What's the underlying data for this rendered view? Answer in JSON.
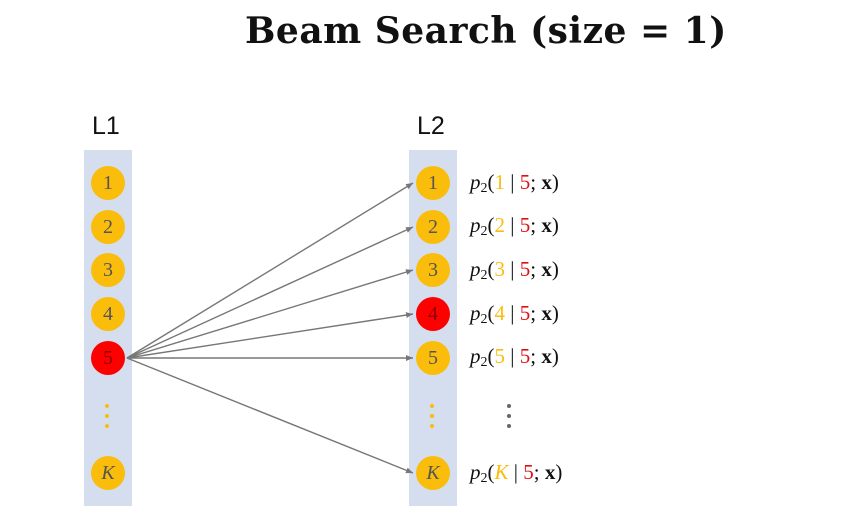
{
  "title": "Beam Search (size = 1)",
  "l1_label": "L1",
  "l2_label": "L2",
  "l1_nodes": [
    "1",
    "2",
    "3",
    "4",
    "5",
    "K"
  ],
  "l2_nodes": [
    "1",
    "2",
    "3",
    "4",
    "5",
    "K"
  ],
  "l1_selected": "5",
  "l2_selected": "4",
  "probabilities": [
    {
      "fn": "p",
      "sub": "2",
      "cand": "1",
      "cond": "5",
      "x": "x"
    },
    {
      "fn": "p",
      "sub": "2",
      "cand": "2",
      "cond": "5",
      "x": "x"
    },
    {
      "fn": "p",
      "sub": "2",
      "cand": "3",
      "cond": "5",
      "x": "x"
    },
    {
      "fn": "p",
      "sub": "2",
      "cand": "4",
      "cond": "5",
      "x": "x"
    },
    {
      "fn": "p",
      "sub": "2",
      "cand": "5",
      "cond": "5",
      "x": "x"
    },
    {
      "fn": "p",
      "sub": "2",
      "cand": "K",
      "cond": "5",
      "x": "x"
    }
  ],
  "colors": {
    "node": "#fbbd0b",
    "selected": "#ff0000",
    "column_bg": "#d4deef",
    "arrow": "#777777",
    "condition": "#e01010"
  }
}
